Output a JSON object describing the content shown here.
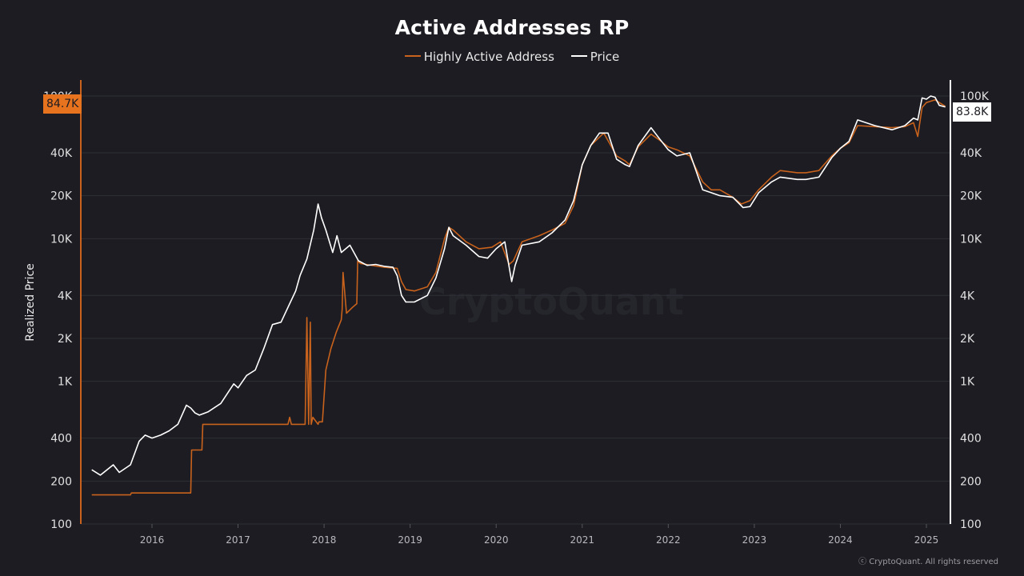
{
  "chart_data": {
    "type": "line",
    "title": "Active Addresses RP",
    "ylabel": "Realized Price",
    "xlabel": "",
    "yscale": "log",
    "ylim": [
      100,
      100000
    ],
    "xlim": [
      2015.3,
      2025.3
    ],
    "grid": true,
    "legend_position": "top-center",
    "y_ticks": [
      "100",
      "200",
      "400",
      "1K",
      "2K",
      "4K",
      "10K",
      "20K",
      "40K",
      "100K"
    ],
    "y_tick_values": [
      100,
      200,
      400,
      1000,
      2000,
      4000,
      10000,
      20000,
      40000,
      100000
    ],
    "x_ticks": [
      "2016",
      "2017",
      "2018",
      "2019",
      "2020",
      "2021",
      "2022",
      "2023",
      "2024",
      "2025"
    ],
    "x_tick_values": [
      2016,
      2017,
      2018,
      2019,
      2020,
      2021,
      2022,
      2023,
      2024,
      2025
    ],
    "last_values": {
      "highly_active_address": "84.7K",
      "price": "83.8K"
    },
    "series": [
      {
        "name": "Highly Active Address",
        "color": "#c8621c",
        "x": [
          2015.3,
          2015.75,
          2015.76,
          2016.45,
          2016.46,
          2016.58,
          2016.59,
          2017.58,
          2017.6,
          2017.62,
          2017.64,
          2017.78,
          2017.8,
          2017.82,
          2017.84,
          2017.85,
          2017.87,
          2017.93,
          2017.94,
          2017.98,
          2018.02,
          2018.08,
          2018.14,
          2018.2,
          2018.21,
          2018.22,
          2018.26,
          2018.33,
          2018.38,
          2018.39,
          2018.42,
          2018.55,
          2018.7,
          2018.85,
          2018.9,
          2018.95,
          2019.05,
          2019.2,
          2019.3,
          2019.4,
          2019.45,
          2019.5,
          2019.65,
          2019.8,
          2019.95,
          2020.05,
          2020.15,
          2020.2,
          2020.3,
          2020.5,
          2020.65,
          2020.8,
          2020.9,
          2021.0,
          2021.1,
          2021.25,
          2021.4,
          2021.5,
          2021.55,
          2021.65,
          2021.8,
          2021.9,
          2022.0,
          2022.1,
          2022.25,
          2022.4,
          2022.5,
          2022.6,
          2022.75,
          2022.85,
          2022.95,
          2023.05,
          2023.2,
          2023.3,
          2023.5,
          2023.6,
          2023.75,
          2023.9,
          2024.0,
          2024.1,
          2024.2,
          2024.4,
          2024.6,
          2024.75,
          2024.85,
          2024.9,
          2024.95,
          2025.0,
          2025.05,
          2025.1,
          2025.15,
          2025.22
        ],
        "values": [
          160,
          160,
          165,
          165,
          330,
          330,
          500,
          500,
          560,
          500,
          500,
          500,
          2800,
          500,
          2600,
          500,
          560,
          500,
          520,
          520,
          1200,
          1700,
          2200,
          2700,
          3200,
          5800,
          3000,
          3300,
          3500,
          7000,
          6700,
          6500,
          6300,
          6200,
          5000,
          4400,
          4300,
          4600,
          5800,
          10000,
          12000,
          11500,
          9500,
          8500,
          8700,
          9500,
          6600,
          7000,
          9500,
          10500,
          11500,
          12800,
          17000,
          33000,
          45000,
          55000,
          38000,
          35000,
          33000,
          44000,
          54000,
          49000,
          44000,
          42000,
          38000,
          25000,
          22000,
          22000,
          19500,
          17500,
          18500,
          22000,
          27000,
          30000,
          29000,
          29000,
          30000,
          38000,
          43000,
          47000,
          62000,
          61000,
          60000,
          61000,
          65000,
          52000,
          83000,
          90000,
          92000,
          94000,
          90000,
          84700
        ]
      },
      {
        "name": "Price",
        "color": "#ffffff",
        "x": [
          2015.3,
          2015.4,
          2015.55,
          2015.62,
          2015.75,
          2015.85,
          2015.92,
          2016.0,
          2016.1,
          2016.2,
          2016.3,
          2016.4,
          2016.45,
          2016.5,
          2016.55,
          2016.65,
          2016.8,
          2016.95,
          2017.0,
          2017.1,
          2017.2,
          2017.3,
          2017.4,
          2017.5,
          2017.6,
          2017.67,
          2017.72,
          2017.8,
          2017.88,
          2017.93,
          2017.97,
          2018.02,
          2018.1,
          2018.15,
          2018.2,
          2018.3,
          2018.4,
          2018.5,
          2018.6,
          2018.7,
          2018.8,
          2018.85,
          2018.9,
          2018.95,
          2019.05,
          2019.2,
          2019.3,
          2019.4,
          2019.45,
          2019.5,
          2019.65,
          2019.8,
          2019.9,
          2020.0,
          2020.1,
          2020.18,
          2020.22,
          2020.3,
          2020.5,
          2020.65,
          2020.8,
          2020.9,
          2021.0,
          2021.1,
          2021.2,
          2021.3,
          2021.4,
          2021.5,
          2021.55,
          2021.65,
          2021.8,
          2021.9,
          2022.0,
          2022.1,
          2022.25,
          2022.4,
          2022.5,
          2022.6,
          2022.75,
          2022.87,
          2022.95,
          2023.05,
          2023.2,
          2023.3,
          2023.5,
          2023.6,
          2023.75,
          2023.9,
          2024.0,
          2024.1,
          2024.2,
          2024.4,
          2024.6,
          2024.75,
          2024.85,
          2024.9,
          2024.95,
          2025.0,
          2025.05,
          2025.1,
          2025.15,
          2025.22
        ],
        "values": [
          240,
          220,
          260,
          230,
          260,
          380,
          420,
          400,
          420,
          450,
          500,
          680,
          650,
          600,
          580,
          610,
          700,
          960,
          900,
          1100,
          1200,
          1700,
          2500,
          2600,
          3500,
          4300,
          5500,
          7200,
          11500,
          17500,
          14000,
          11500,
          8000,
          10500,
          8000,
          9000,
          7000,
          6500,
          6600,
          6400,
          6300,
          5500,
          4000,
          3600,
          3600,
          4000,
          5300,
          8500,
          12000,
          10500,
          9000,
          7500,
          7300,
          8500,
          9500,
          5000,
          6500,
          9000,
          9500,
          11000,
          13500,
          18500,
          33000,
          45000,
          55000,
          55000,
          36000,
          33000,
          32000,
          45000,
          60000,
          50000,
          42000,
          38000,
          40000,
          22000,
          21000,
          20000,
          19500,
          16500,
          16800,
          21000,
          25000,
          27000,
          26000,
          26000,
          27000,
          37000,
          43000,
          48000,
          68000,
          62000,
          58000,
          62000,
          70000,
          68000,
          97000,
          95000,
          100000,
          98000,
          86000,
          83800
        ]
      }
    ]
  },
  "watermark": "CryptoQuant",
  "copyright": "ⓒ CryptoQuant. All rights reserved"
}
